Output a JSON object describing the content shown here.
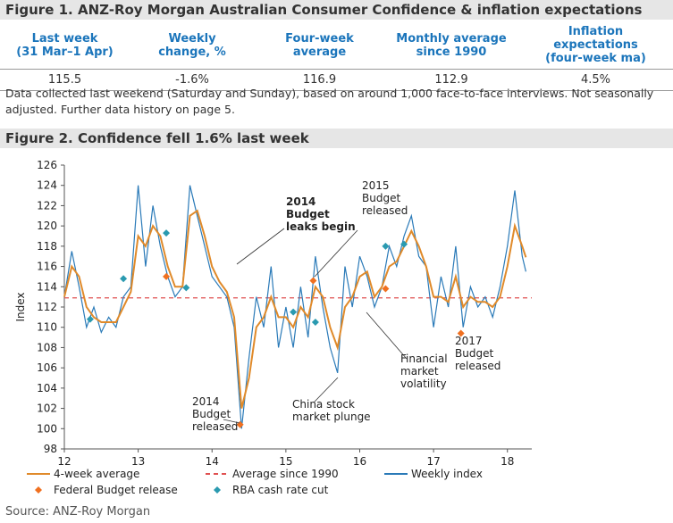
{
  "figure1": {
    "title": "Figure 1. ANZ-Roy Morgan Australian Consumer Confidence & inflation expectations",
    "headers": [
      [
        "Last week",
        "(31 Mar–1 Apr)"
      ],
      [
        "Weekly",
        "change, %"
      ],
      [
        "Four-week",
        "average"
      ],
      [
        "Monthly average",
        "since 1990"
      ],
      [
        "Inflation",
        "expectations",
        "(four-week ma)"
      ]
    ],
    "values": [
      "115.5",
      "-1.6%",
      "116.9",
      "112.9",
      "4.5%"
    ],
    "note": "Data collected last weekend (Saturday and Sunday), based on around 1,000 face-to-face interviews. Not seasonally adjusted. Further data history on page 5."
  },
  "chart_data": {
    "type": "line",
    "title": "Figure 2. Confidence fell 1.6% last week",
    "y_label": "Index",
    "xlim": [
      12,
      18.33
    ],
    "xticks": [
      12,
      13,
      14,
      15,
      16,
      17,
      18
    ],
    "ylim": [
      98,
      126
    ],
    "yticks": [
      98,
      100,
      102,
      104,
      106,
      108,
      110,
      112,
      114,
      116,
      118,
      120,
      122,
      124,
      126
    ],
    "x": [
      12.0,
      12.1,
      12.2,
      12.3,
      12.4,
      12.5,
      12.6,
      12.7,
      12.8,
      12.9,
      13.0,
      13.1,
      13.2,
      13.3,
      13.4,
      13.5,
      13.6,
      13.7,
      13.8,
      13.9,
      14.0,
      14.1,
      14.2,
      14.3,
      14.4,
      14.5,
      14.6,
      14.7,
      14.8,
      14.9,
      15.0,
      15.1,
      15.2,
      15.3,
      15.4,
      15.5,
      15.6,
      15.7,
      15.8,
      15.9,
      16.0,
      16.1,
      16.2,
      16.3,
      16.4,
      16.5,
      16.6,
      16.7,
      16.8,
      16.9,
      17.0,
      17.1,
      17.2,
      17.3,
      17.4,
      17.5,
      17.6,
      17.7,
      17.8,
      17.9,
      18.0,
      18.1,
      18.2,
      18.25
    ],
    "series": [
      {
        "name": "Weekly index",
        "color": "#2a7ab8",
        "values": [
          113,
          117.5,
          114,
          110,
          112,
          109.5,
          111,
          110,
          113,
          114,
          124,
          116,
          122,
          118,
          115,
          113,
          114,
          124,
          121,
          118,
          115,
          114,
          113,
          110,
          100,
          107,
          113,
          110,
          116,
          108,
          112,
          108,
          114,
          109,
          117,
          112,
          108,
          105.5,
          116,
          112,
          117,
          115,
          112,
          114,
          118,
          116,
          119,
          121,
          117,
          116,
          110,
          115,
          112,
          118,
          110,
          114,
          112,
          113,
          111,
          114,
          118,
          123.5,
          117,
          115.5
        ]
      },
      {
        "name": "4-week average",
        "color": "#e08a2a",
        "values": [
          113,
          116,
          115,
          112,
          111,
          110.5,
          110.5,
          110.5,
          112,
          113.5,
          119,
          118,
          120,
          119,
          116,
          114,
          114,
          121,
          121.5,
          119,
          116,
          114.5,
          113.5,
          111,
          102,
          105,
          110,
          111,
          113,
          111,
          111,
          110,
          112,
          111,
          114,
          113,
          110,
          108,
          112,
          113,
          115,
          115.5,
          113,
          114,
          116,
          116.5,
          118,
          119.5,
          118,
          116,
          113,
          113,
          112.5,
          115,
          112,
          113,
          112.5,
          112.5,
          112,
          113,
          116,
          120,
          118,
          116.9
        ]
      }
    ],
    "reference": {
      "name": "Average since 1990",
      "color": "#e05050",
      "value": 112.9
    },
    "markers": [
      {
        "name": "Federal Budget release",
        "color": "#f07020",
        "x": [
          13.38,
          14.38,
          15.37,
          16.35,
          17.37
        ],
        "values": [
          115,
          100.4,
          114.6,
          113.8,
          109.4
        ]
      },
      {
        "name": "RBA cash rate cut",
        "color": "#2a9ab0",
        "x": [
          12.35,
          12.8,
          13.38,
          13.65,
          15.1,
          15.4,
          16.35,
          16.6
        ],
        "values": [
          110.8,
          114.8,
          119.3,
          113.9,
          111.5,
          110.5,
          118,
          118.2
        ]
      }
    ],
    "annotations": [
      [
        "2014",
        "Budget",
        "leaks begin"
      ],
      [
        "2015",
        "Budget",
        "released"
      ],
      [
        "2014",
        "Budget",
        "released"
      ],
      [
        "China stock",
        "market plunge"
      ],
      [
        "Financial",
        "market",
        "volatility"
      ],
      [
        "2017",
        "Budget",
        "released"
      ]
    ]
  },
  "source": "Source: ANZ-Roy Morgan"
}
